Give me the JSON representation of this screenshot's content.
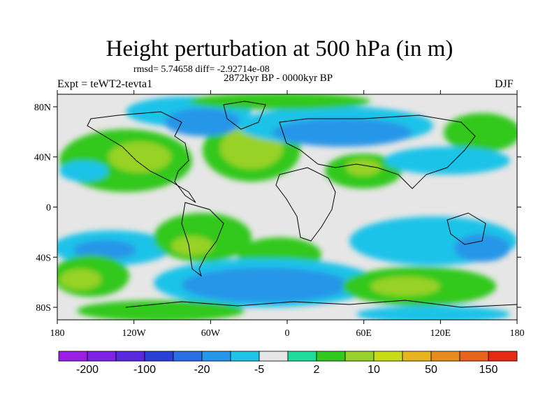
{
  "title": "Height perturbation at 500 hPa (in m)",
  "stats_text": "rmsd= 5.74658 diff= -2.92714e-08",
  "period_text": "2872kyr BP - 0000kyr BP",
  "experiment_text": "Expt = teWT2-tevta1",
  "season_text": "DJF",
  "map": {
    "projection": "cylindrical equidistant",
    "lon_range": [
      -180,
      180
    ],
    "lat_range": [
      -90,
      90
    ],
    "x_ticks": [
      {
        "lon": -180,
        "label": "180"
      },
      {
        "lon": -120,
        "label": "120W"
      },
      {
        "lon": -60,
        "label": "60W"
      },
      {
        "lon": 0,
        "label": "0"
      },
      {
        "lon": 60,
        "label": "60E"
      },
      {
        "lon": 120,
        "label": "120E"
      },
      {
        "lon": 180,
        "label": "180"
      }
    ],
    "y_ticks": [
      {
        "lat": 80,
        "label": "80N"
      },
      {
        "lat": 40,
        "label": "40N"
      },
      {
        "lat": 0,
        "label": "0"
      },
      {
        "lat": -40,
        "label": "40S"
      },
      {
        "lat": -80,
        "label": "80S"
      }
    ],
    "neutral_color": "#e6e6e6",
    "coastline_color": "#000000"
  },
  "colorbar": {
    "colors": [
      "#9a1ee6",
      "#7d22e6",
      "#5a28e0",
      "#2a3ed8",
      "#2a6ee6",
      "#2596e8",
      "#1ec3e8",
      "#e6e6e6",
      "#1edc9a",
      "#32c81e",
      "#98d228",
      "#c8dc14",
      "#e6b41e",
      "#e68c1e",
      "#e6641e",
      "#e62814"
    ],
    "labels": [
      {
        "after_index": 0,
        "text": "-200"
      },
      {
        "after_index": 2,
        "text": "-100"
      },
      {
        "after_index": 4,
        "text": "-20"
      },
      {
        "after_index": 6,
        "text": "-5"
      },
      {
        "after_index": 8,
        "text": "2"
      },
      {
        "after_index": 10,
        "text": "10"
      },
      {
        "after_index": 12,
        "text": "50"
      },
      {
        "after_index": 14,
        "text": "150"
      }
    ]
  }
}
